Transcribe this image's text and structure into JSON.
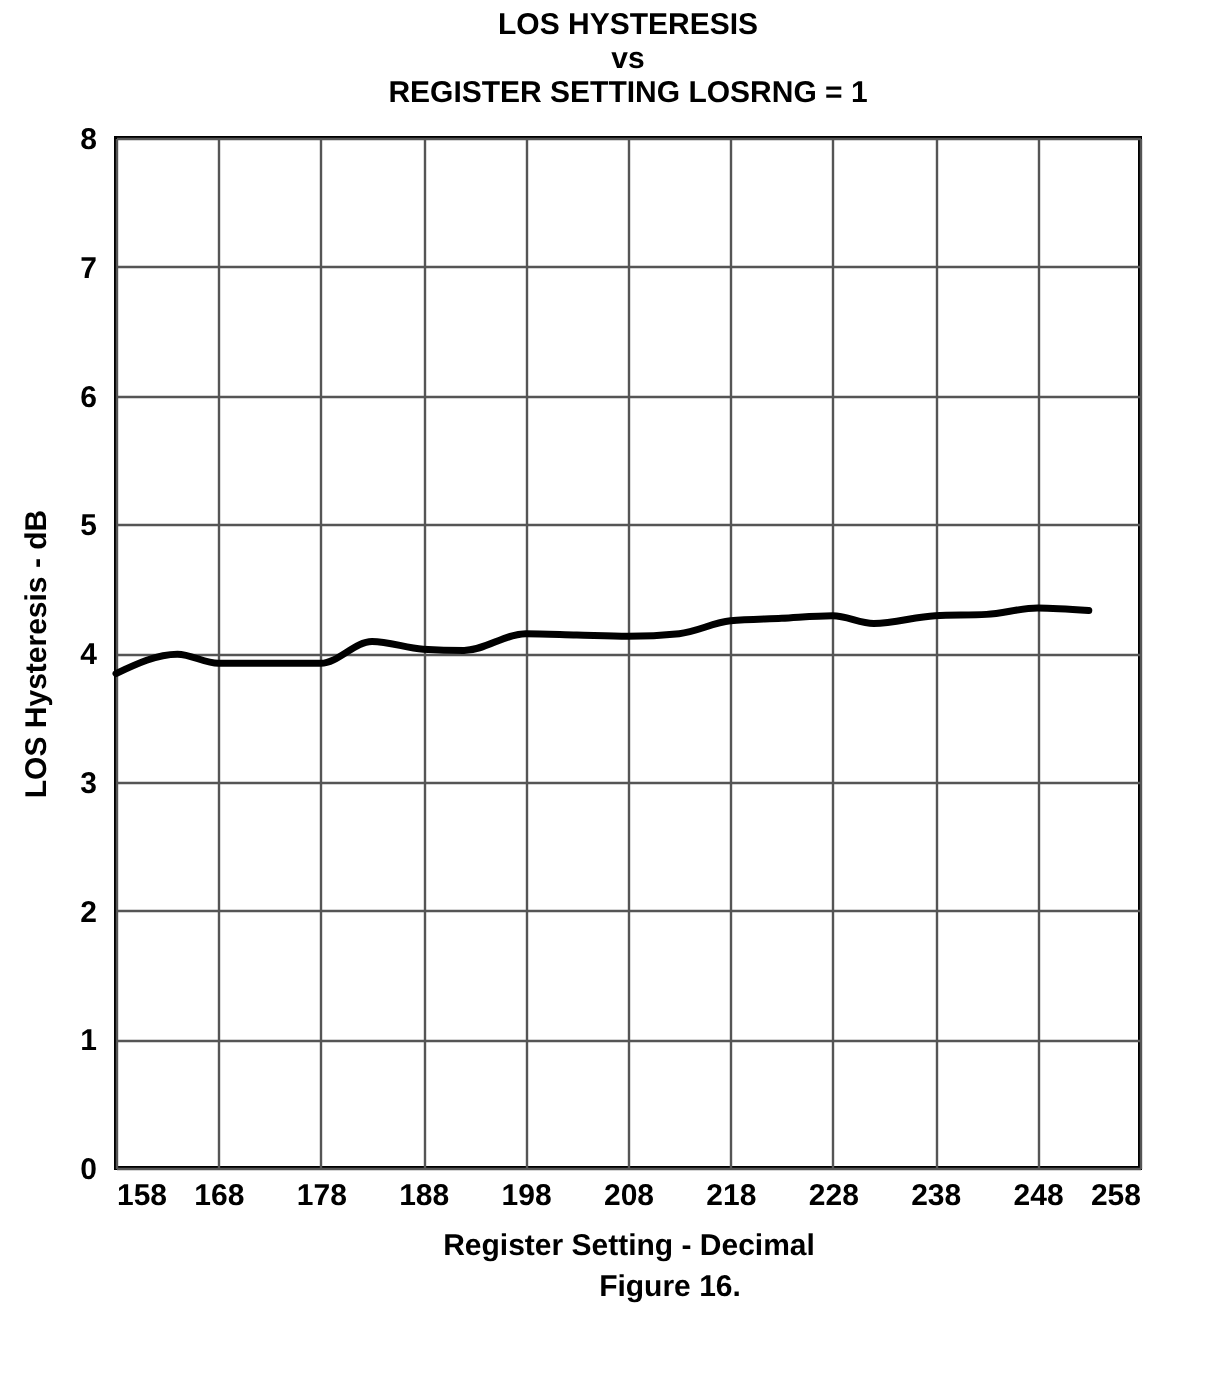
{
  "chart_data": {
    "type": "line",
    "title": [
      "LOS HYSTERESIS",
      "vs",
      "REGISTER SETTING LOSRNG = 1"
    ],
    "xlabel": "Register Setting - Decimal",
    "ylabel": "LOS Hysteresis - dB",
    "annotations": [
      "Figure 16."
    ],
    "x": [
      158,
      164,
      168,
      173,
      178,
      183,
      188,
      192,
      198,
      203,
      208,
      213,
      218,
      223,
      228,
      232,
      238,
      243,
      248,
      253
    ],
    "series": [
      {
        "color": "#000000",
        "values": [
          3.84,
          3.99,
          3.92,
          3.92,
          3.92,
          4.09,
          4.03,
          4.02,
          4.15,
          4.14,
          4.13,
          4.15,
          4.25,
          4.27,
          4.29,
          4.23,
          4.29,
          4.3,
          4.35,
          4.33
        ]
      }
    ],
    "xlim": [
      158,
      258
    ],
    "xticks": [
      158,
      168,
      178,
      188,
      198,
      208,
      218,
      228,
      238,
      248,
      258
    ],
    "ylim": [
      0,
      8
    ],
    "yticks": [
      0,
      1,
      2,
      3,
      4,
      5,
      6,
      7,
      8
    ],
    "grid": true,
    "legend": false,
    "marker": "none",
    "line_style": "solid"
  }
}
